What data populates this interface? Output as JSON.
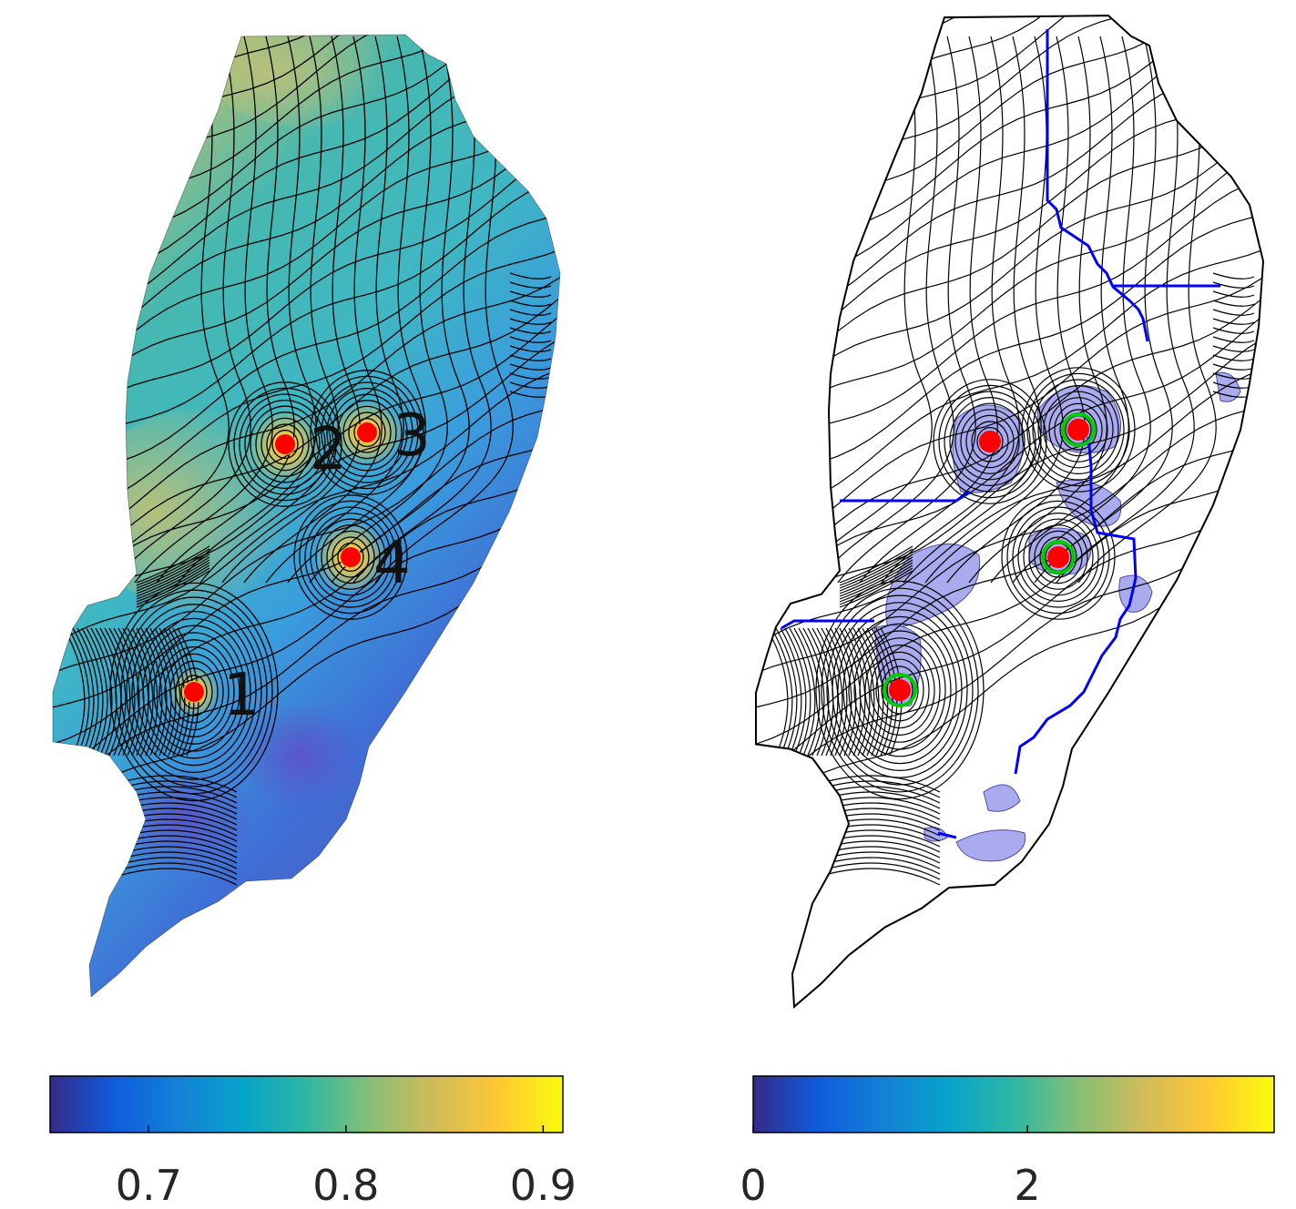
{
  "panels": [
    {
      "id": "left",
      "wells": [
        {
          "label": "1",
          "color": "#ff0000"
        },
        {
          "label": "2",
          "color": "#ff0000"
        },
        {
          "label": "3",
          "color": "#ff0000"
        },
        {
          "label": "4",
          "color": "#ff0000"
        }
      ],
      "colorbar": {
        "ticks": [
          "0.7",
          "0.8",
          "0.9"
        ],
        "tick_values": [
          0.7,
          0.8,
          0.9
        ],
        "range": [
          0.65,
          0.91
        ],
        "colormap": "parula"
      }
    },
    {
      "id": "right",
      "wells": [
        {
          "color": "#ff0000"
        },
        {
          "color": "#ff0000"
        },
        {
          "color": "#ff0000"
        },
        {
          "color": "#ff0000"
        }
      ],
      "boundary_color": "#0000ff",
      "highlight_fill": "#aaaaee",
      "front_color": "#00cc00",
      "colorbar": {
        "ticks": [
          "0",
          "2"
        ],
        "tick_values": [
          0,
          2
        ],
        "range": [
          0,
          3.8
        ],
        "colormap": "parula"
      }
    }
  ],
  "colors": {
    "parula": [
      "#352a87",
      "#0f5cdd",
      "#1481d6",
      "#06a4ca",
      "#2eb7a4",
      "#87bf77",
      "#d1bb59",
      "#fec832",
      "#f9fb0e"
    ],
    "contour": "#000000"
  }
}
